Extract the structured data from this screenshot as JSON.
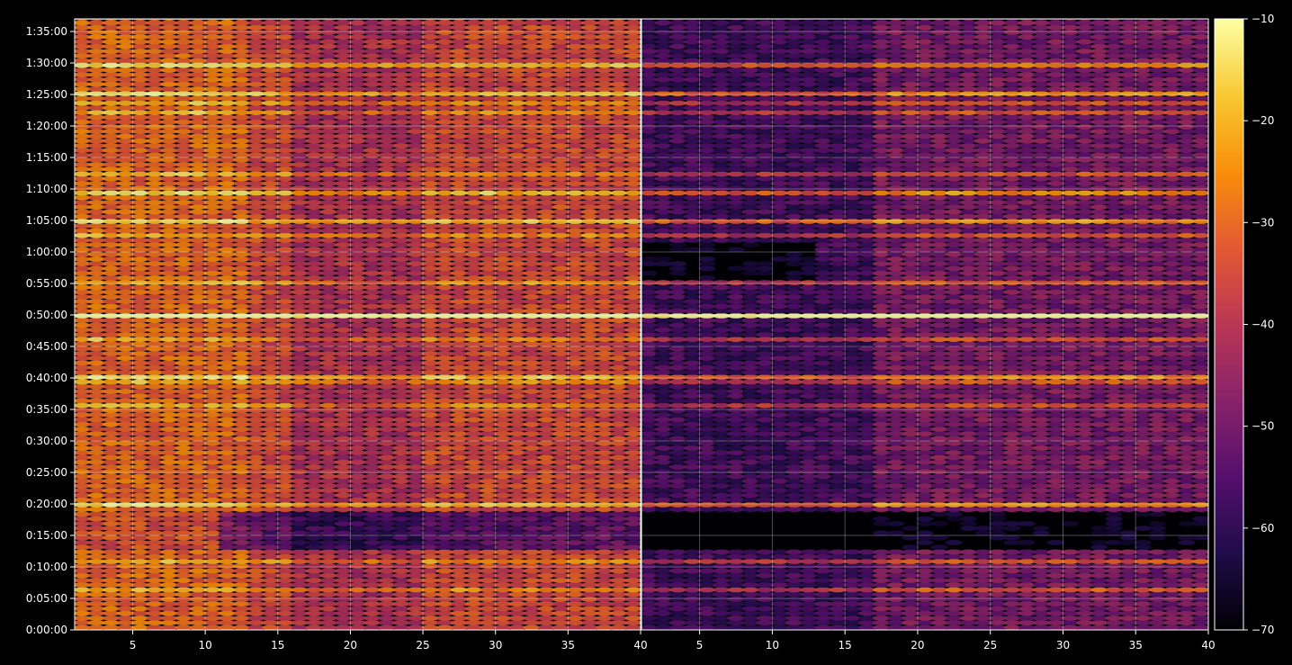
{
  "chart_data": {
    "type": "heatmap",
    "title": "",
    "panels": [
      {
        "name": "left",
        "x_range": [
          1,
          40
        ]
      },
      {
        "name": "right",
        "x_range": [
          1,
          40
        ]
      }
    ],
    "x_ticks": [
      5,
      10,
      15,
      20,
      25,
      30,
      35,
      40
    ],
    "y_range_seconds": [
      0,
      5820
    ],
    "y_ticks": [
      {
        "seconds": 0,
        "label": "0:00:00"
      },
      {
        "seconds": 300,
        "label": "0:05:00"
      },
      {
        "seconds": 600,
        "label": "0:10:00"
      },
      {
        "seconds": 900,
        "label": "0:15:00"
      },
      {
        "seconds": 1200,
        "label": "0:20:00"
      },
      {
        "seconds": 1500,
        "label": "0:25:00"
      },
      {
        "seconds": 1800,
        "label": "0:30:00"
      },
      {
        "seconds": 2100,
        "label": "0:35:00"
      },
      {
        "seconds": 2400,
        "label": "0:40:00"
      },
      {
        "seconds": 2700,
        "label": "0:45:00"
      },
      {
        "seconds": 3000,
        "label": "0:50:00"
      },
      {
        "seconds": 3300,
        "label": "0:55:00"
      },
      {
        "seconds": 3600,
        "label": "1:00:00"
      },
      {
        "seconds": 3900,
        "label": "1:05:00"
      },
      {
        "seconds": 4200,
        "label": "1:10:00"
      },
      {
        "seconds": 4500,
        "label": "1:15:00"
      },
      {
        "seconds": 4800,
        "label": "1:20:00"
      },
      {
        "seconds": 5100,
        "label": "1:25:00"
      },
      {
        "seconds": 5400,
        "label": "1:30:00"
      },
      {
        "seconds": 5700,
        "label": "1:35:00"
      }
    ],
    "colorbar": {
      "colormap": "inferno",
      "range": [
        -70,
        -10
      ],
      "ticks": [
        -10,
        -20,
        -30,
        -40,
        -50,
        -60,
        -70
      ],
      "tick_labels": [
        "−10",
        "−20",
        "−30",
        "−40",
        "−50",
        "−60",
        "−70"
      ]
    },
    "strong_bands_seconds": [
      1190,
      1800,
      2400,
      2980,
      3000,
      3900,
      4180,
      5120,
      5360
    ],
    "medium_bands_seconds": [
      180,
      380,
      640,
      2120,
      2360,
      2700,
      2780,
      3300,
      3760,
      4360,
      4940,
      5010
    ],
    "quiet_region_seconds": [
      760,
      1120
    ],
    "grid": true,
    "background": "#000000"
  }
}
